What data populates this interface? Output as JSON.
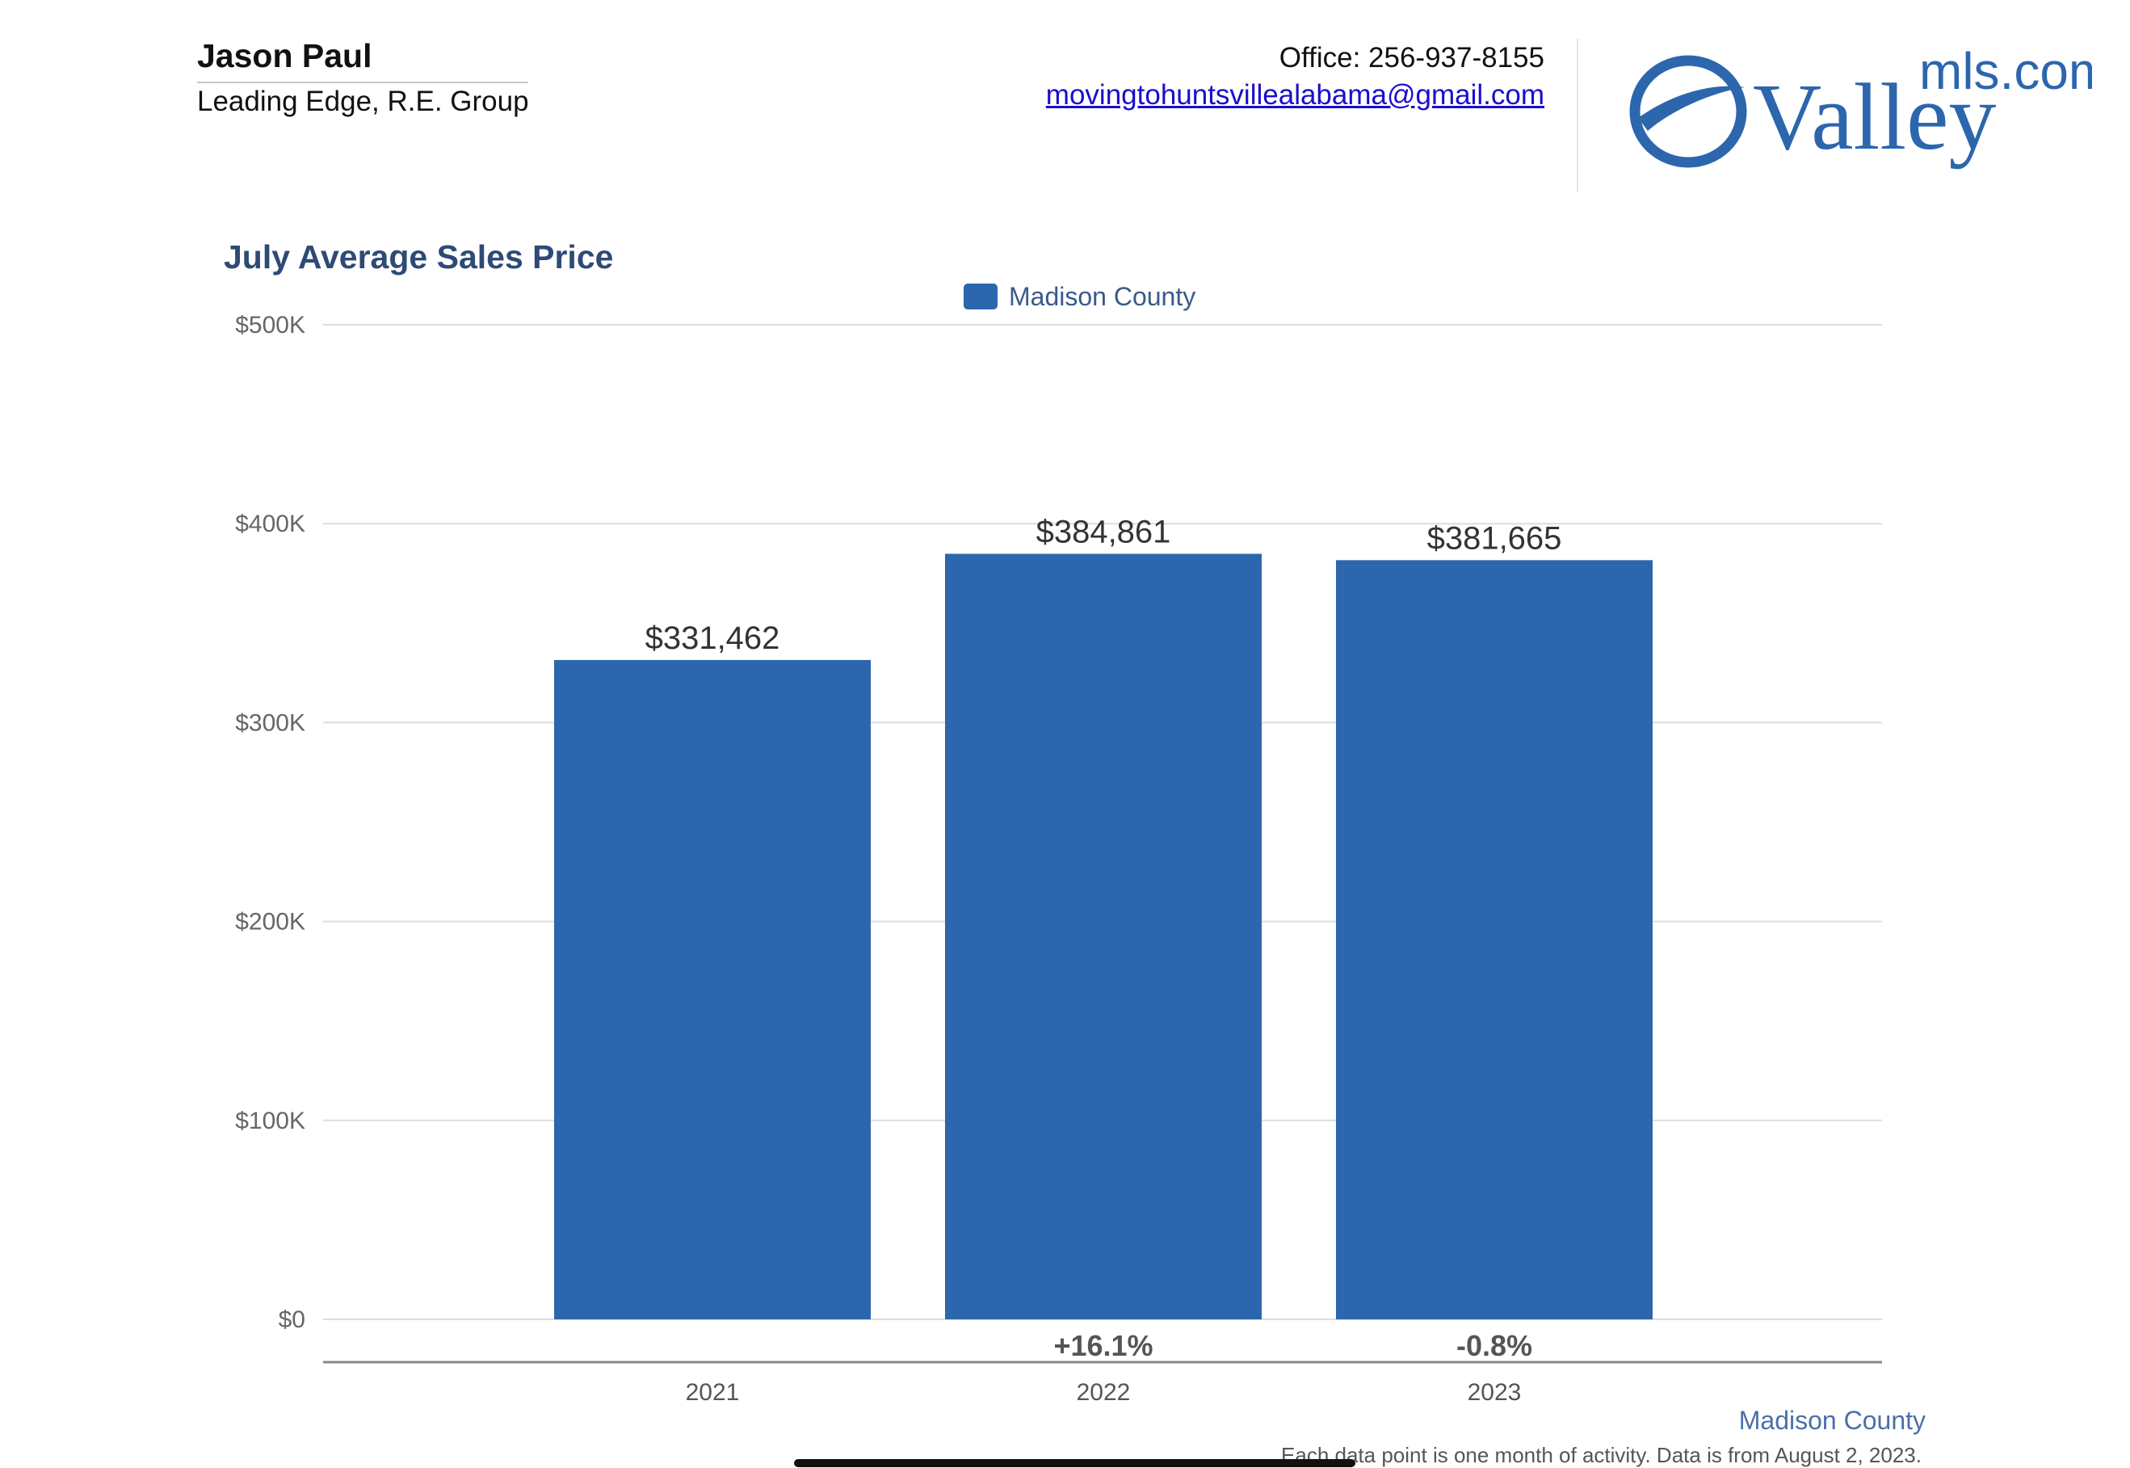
{
  "agent": {
    "name": "Jason Paul",
    "company": "Leading Edge, R.E. Group",
    "office": "Office: 256-937-8155",
    "email": "movingtohuntsvillealabama@gmail.com"
  },
  "logo": {
    "text_main": "Valley",
    "text_suffix": "mls.com",
    "color": "#2c66ad"
  },
  "chart_data": {
    "type": "bar",
    "title": "July Average Sales Price",
    "xlabel": "",
    "ylabel": "",
    "categories": [
      "2021",
      "2022",
      "2023"
    ],
    "series": [
      {
        "name": "Madison County",
        "values": [
          331462,
          384861,
          381665
        ],
        "color": "#2c66ad"
      }
    ],
    "data_labels": [
      "$331,462",
      "$384,861",
      "$381,665"
    ],
    "change_labels": [
      "",
      "+16.1%",
      "-0.8%"
    ],
    "ylim": [
      0,
      500000
    ],
    "yticks": [
      0,
      100000,
      200000,
      300000,
      400000,
      500000
    ],
    "ytick_labels": [
      "$0",
      "$100K",
      "$200K",
      "$300K",
      "$400K",
      "$500K"
    ],
    "grid": true,
    "legend": "top-center"
  },
  "footer": {
    "county": "Madison County",
    "note": "Each data point is one month of activity. Data is from August 2, 2023."
  }
}
